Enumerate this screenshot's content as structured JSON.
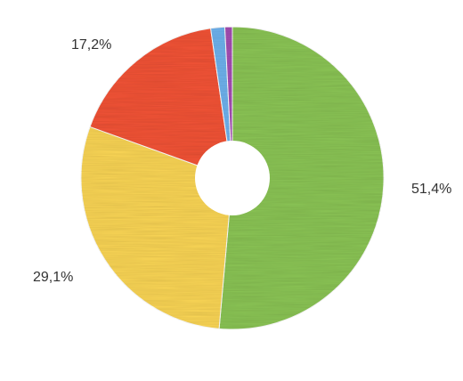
{
  "chart_data": {
    "type": "pie",
    "donut": true,
    "title": "",
    "legend": "none",
    "slices": [
      {
        "value": 51.4,
        "label": "51,4%",
        "color": "#8cc657"
      },
      {
        "value": 29.1,
        "label": "29,1%",
        "color": "#fcd757"
      },
      {
        "value": 17.2,
        "label": "17,2%",
        "color": "#f45438"
      },
      {
        "value": 1.5,
        "label": "",
        "color": "#6fb3ef"
      },
      {
        "value": 0.8,
        "label": "",
        "color": "#a64fb5"
      }
    ]
  }
}
